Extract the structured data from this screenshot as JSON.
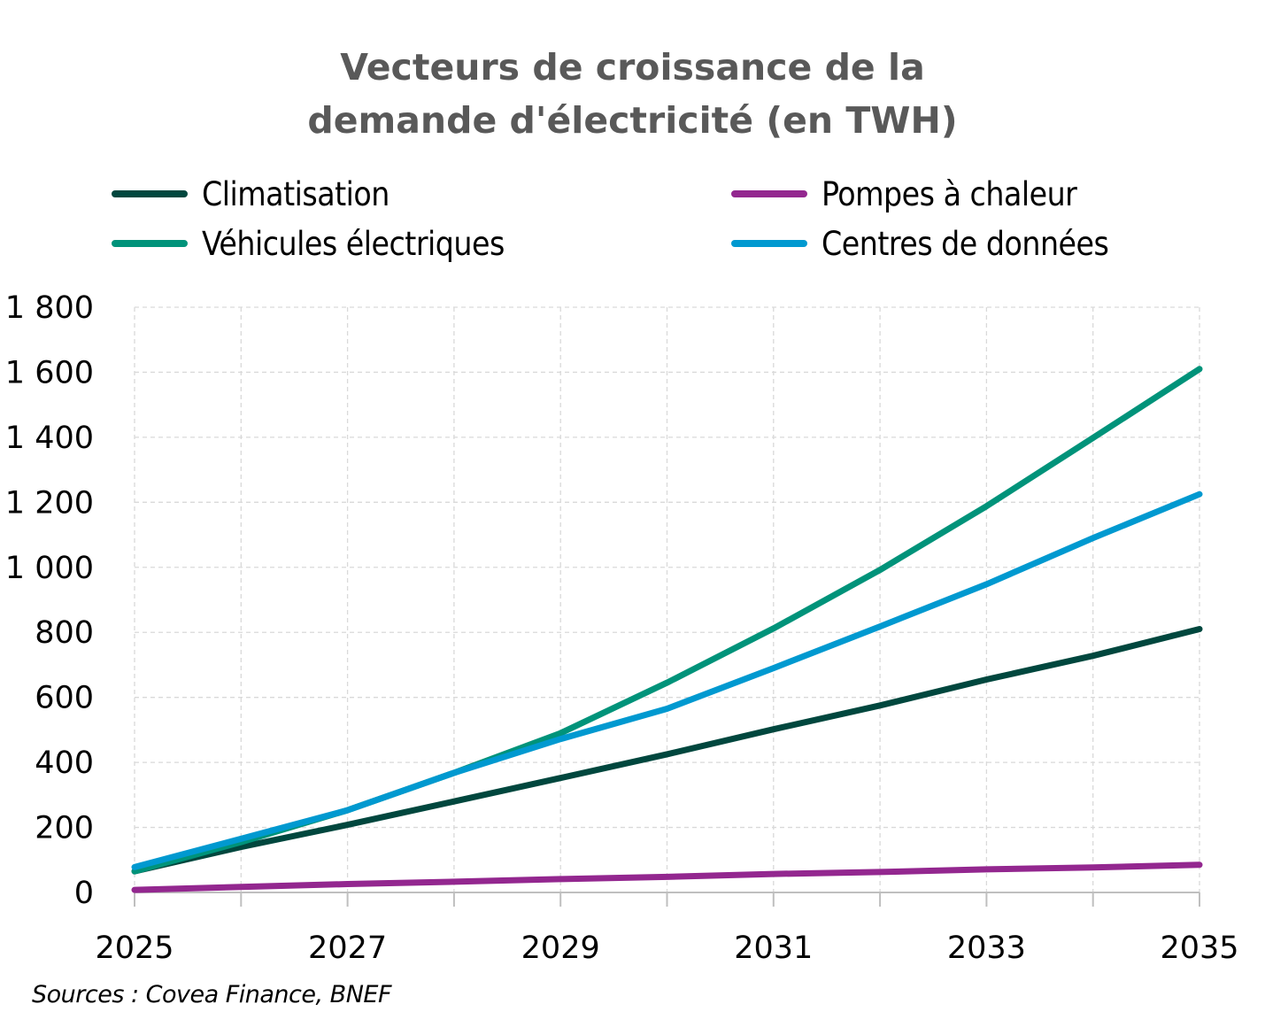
{
  "chart_data": {
    "type": "line",
    "title": "Vecteurs de croissance de la demande d'électricité (en TWH)",
    "title_lines": [
      "Vecteurs de croissance de la",
      "demande d'électricité (en TWH)"
    ],
    "xlabel": "",
    "ylabel": "",
    "x": [
      2025,
      2026,
      2027,
      2028,
      2029,
      2030,
      2031,
      2032,
      2033,
      2034,
      2035
    ],
    "xlim": [
      2025,
      2035
    ],
    "ylim": [
      0,
      1800
    ],
    "x_ticks": [
      "2025",
      "2027",
      "2029",
      "2031",
      "2033",
      "2035"
    ],
    "x_tick_values": [
      2025,
      2027,
      2029,
      2031,
      2033,
      2035
    ],
    "y_ticks": [
      "0",
      "200",
      "400",
      "600",
      "800",
      "1 000",
      "1 200",
      "1 400",
      "1 600",
      "1 800"
    ],
    "y_tick_values": [
      0,
      200,
      400,
      600,
      800,
      1000,
      1200,
      1400,
      1600,
      1800
    ],
    "grid": true,
    "legend_position": "top",
    "series": [
      {
        "name": "Climatisation",
        "color": "#00473E",
        "values": [
          65,
          140,
          208,
          280,
          352,
          425,
          502,
          575,
          655,
          728,
          810
        ]
      },
      {
        "name": "Pompes à chaleur",
        "color": "#93278F",
        "values": [
          8,
          17,
          26,
          33,
          41,
          48,
          57,
          63,
          71,
          77,
          85
        ]
      },
      {
        "name": "Véhicules électriques",
        "color": "#00937A",
        "values": [
          65,
          155,
          253,
          368,
          490,
          645,
          812,
          992,
          1188,
          1398,
          1610
        ]
      },
      {
        "name": "Centres de données",
        "color": "#0099D0",
        "values": [
          78,
          165,
          253,
          368,
          472,
          565,
          690,
          818,
          948,
          1090,
          1225
        ]
      }
    ],
    "source": "Sources : Covea Finance,  BNEF"
  }
}
